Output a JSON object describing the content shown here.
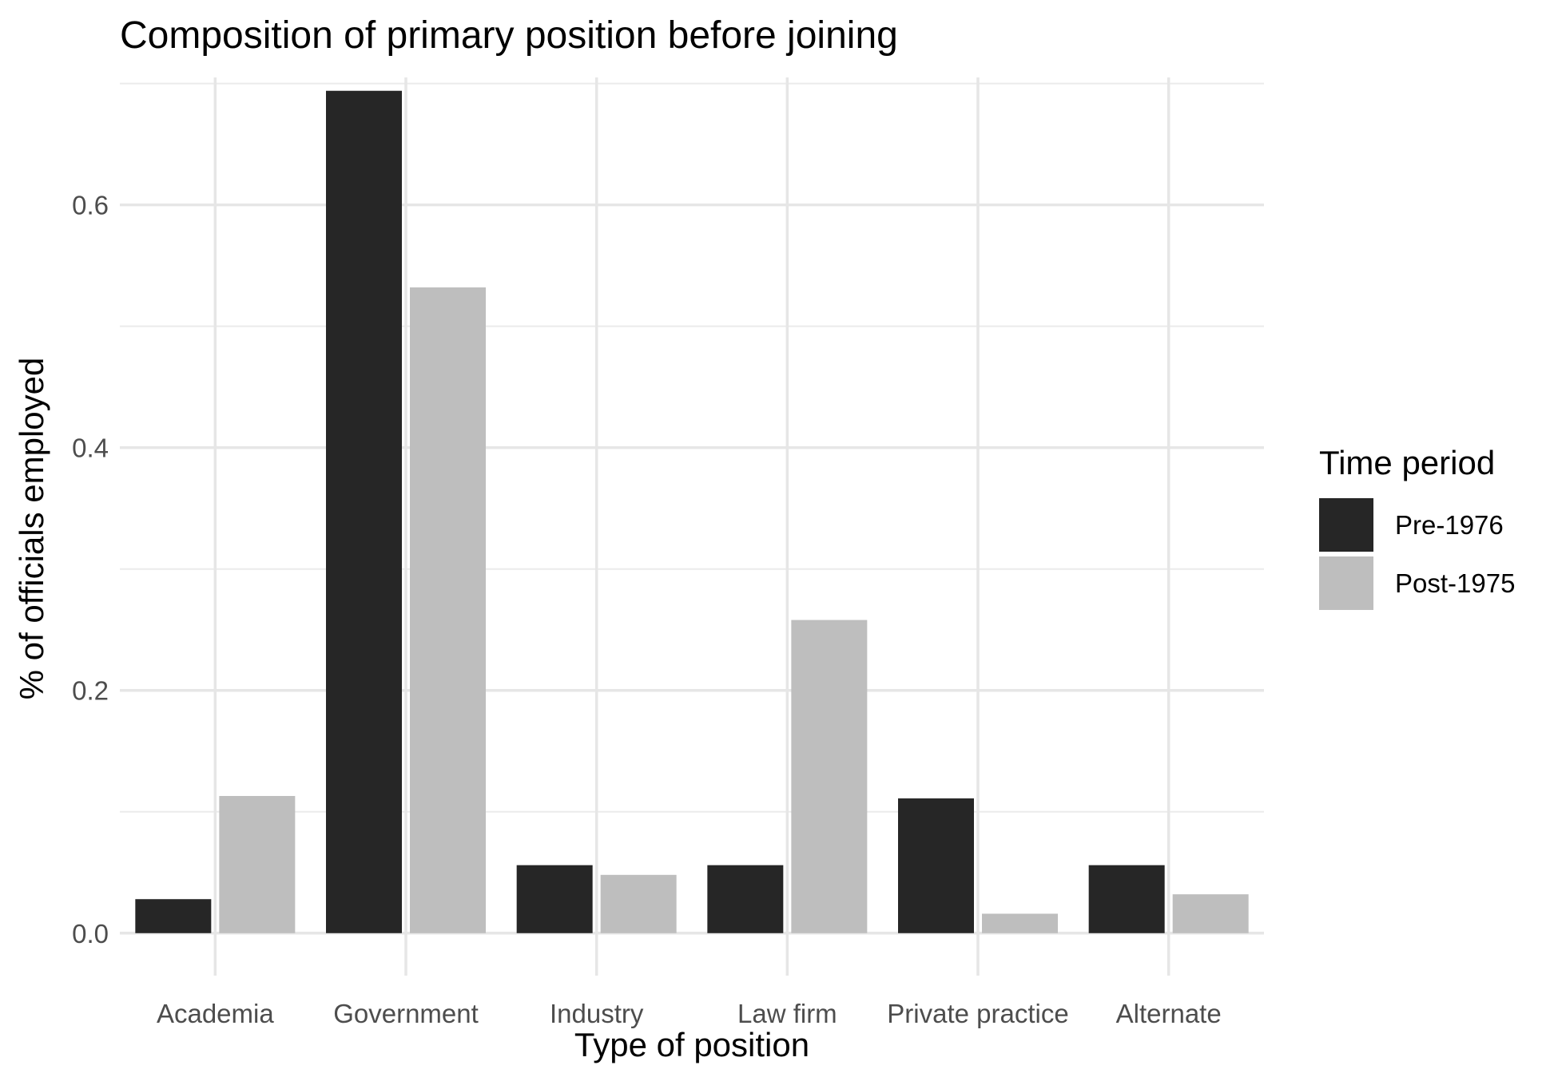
{
  "chart_data": {
    "type": "bar",
    "title": "Composition of primary position before joining",
    "xlabel": "Type of position",
    "ylabel": "% of officials employed",
    "categories": [
      "Academia",
      "Government",
      "Industry",
      "Law firm",
      "Private practice",
      "Alternate"
    ],
    "series": [
      {
        "name": "Pre-1976",
        "color": "#262626",
        "values": [
          0.028,
          0.694,
          0.056,
          0.056,
          0.111,
          0.056
        ]
      },
      {
        "name": "Post-1975",
        "color": "#bebebe",
        "values": [
          0.113,
          0.532,
          0.048,
          0.258,
          0.016,
          0.032
        ]
      }
    ],
    "ylim": [
      -0.035,
      0.705
    ],
    "yticks": [
      0.0,
      0.2,
      0.4,
      0.6
    ],
    "ytick_labels": [
      "0.0",
      "0.2",
      "0.4",
      "0.6"
    ],
    "grid": true,
    "legend": {
      "title": "Time period",
      "position": "right"
    }
  }
}
